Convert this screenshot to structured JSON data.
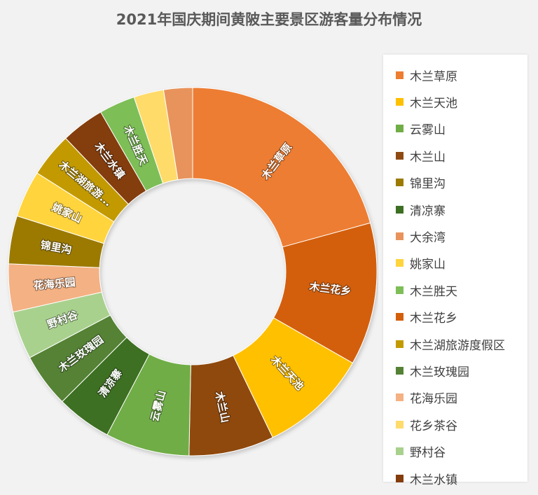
{
  "chart_data": {
    "type": "pie",
    "title": "2021年国庆期间黄陂主要景区游客量分布情况",
    "legend_position": "right",
    "series": [
      {
        "name": "木兰草原",
        "value": 19.7,
        "color": "#ED7D31",
        "label": "木兰草原"
      },
      {
        "name": "木兰花乡",
        "value": 11.9,
        "color": "#D35F0B",
        "label": "木兰花乡"
      },
      {
        "name": "木兰天池",
        "value": 9.1,
        "color": "#FFC000",
        "label": "木兰天池"
      },
      {
        "name": "木兰山",
        "value": 7.1,
        "color": "#8F4A11",
        "label": "木兰山"
      },
      {
        "name": "云雾山",
        "value": 7.0,
        "color": "#70AD47",
        "label": "云雾山"
      },
      {
        "name": "清凉寨",
        "value": 4.6,
        "color": "#3D6F23",
        "label": "清凉寨"
      },
      {
        "name": "木兰玫瑰园",
        "value": 4.5,
        "color": "#548235",
        "label": "木兰玫瑰园"
      },
      {
        "name": "野村谷",
        "value": 4.0,
        "color": "#A9D18E",
        "label": "野村谷"
      },
      {
        "name": "花海乐园",
        "value": 4.0,
        "color": "#F4B183",
        "label": "花海乐园"
      },
      {
        "name": "锦里沟",
        "value": 4.0,
        "color": "#9C7A00",
        "label": "锦里沟"
      },
      {
        "name": "姚家山",
        "value": 3.9,
        "color": "#FFD43C",
        "label": "姚家山"
      },
      {
        "name": "木兰湖旅游度假区",
        "value": 3.7,
        "color": "#C29A00",
        "label": "木兰湖旅游..."
      },
      {
        "name": "木兰水镇",
        "value": 3.6,
        "color": "#843C0C",
        "label": "木兰水镇"
      },
      {
        "name": "木兰胜天",
        "value": 3.0,
        "color": "#7DBE57",
        "label": "木兰胜天"
      },
      {
        "name": "花乡茶谷",
        "value": 2.5,
        "color": "#FFDB6B",
        "label": ""
      },
      {
        "name": "大余湾",
        "value": 2.4,
        "color": "#E8935B",
        "label": ""
      }
    ],
    "legend": [
      "木兰草原",
      "木兰天池",
      "云雾山",
      "木兰山",
      "锦里沟",
      "清凉寨",
      "大余湾",
      "姚家山",
      "木兰胜天",
      "木兰花乡",
      "木兰湖旅游度假区",
      "木兰玫瑰园",
      "花海乐园",
      "花乡茶谷",
      "野村谷",
      "木兰水镇"
    ]
  }
}
